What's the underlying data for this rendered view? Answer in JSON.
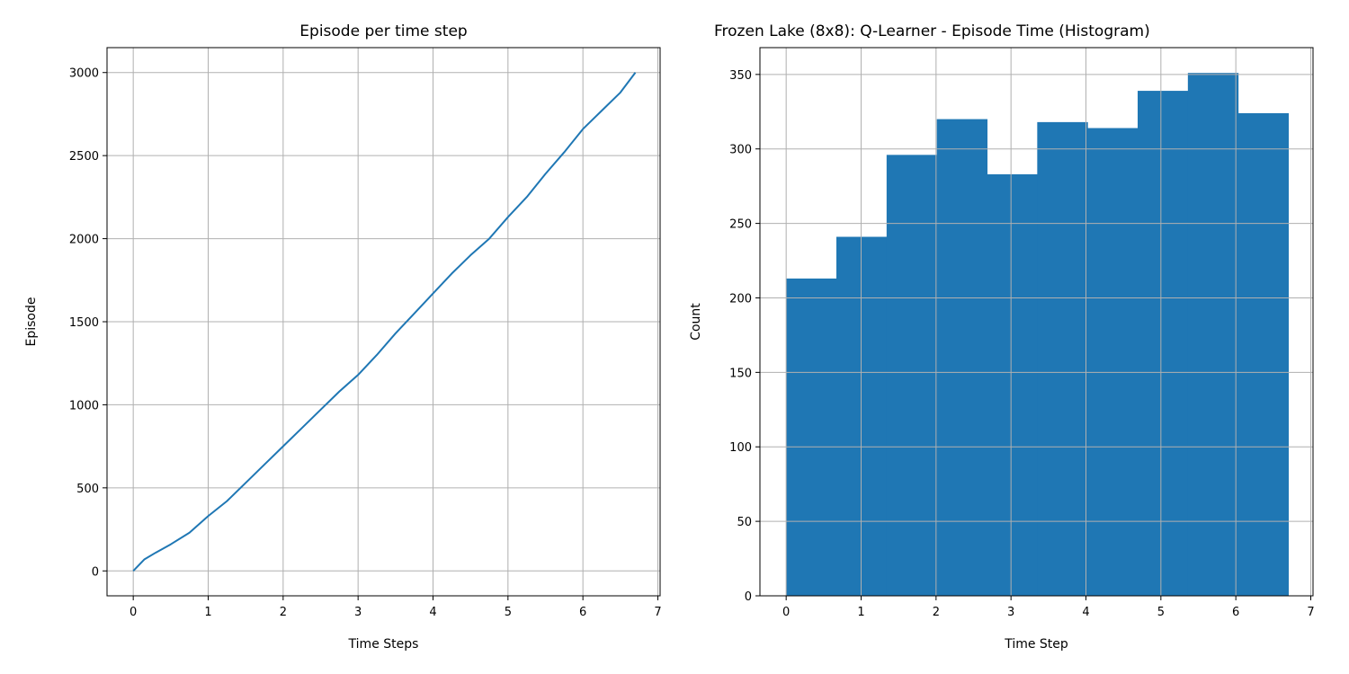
{
  "chart_data": [
    {
      "type": "line",
      "title": "Episode per time step",
      "xlabel": "Time Steps",
      "ylabel": "Episode",
      "xlim": [
        -0.35,
        7.03
      ],
      "ylim": [
        -150,
        3150
      ],
      "xticks": [
        0,
        1,
        2,
        3,
        4,
        5,
        6,
        7
      ],
      "yticks": [
        0,
        500,
        1000,
        1500,
        2000,
        2500,
        3000
      ],
      "grid": true,
      "line_color": "#1f77b4",
      "series": [
        {
          "x": [
            0,
            0.15,
            0.3,
            0.5,
            0.75,
            1.0,
            1.25,
            1.5,
            1.75,
            2.0,
            2.25,
            2.5,
            2.75,
            3.0,
            3.25,
            3.5,
            3.75,
            4.0,
            4.25,
            4.5,
            4.75,
            5.0,
            5.25,
            5.5,
            5.75,
            6.0,
            6.25,
            6.5,
            6.7
          ],
          "y": [
            0,
            70,
            110,
            160,
            230,
            330,
            420,
            530,
            640,
            750,
            860,
            970,
            1080,
            1180,
            1300,
            1430,
            1550,
            1670,
            1790,
            1900,
            2000,
            2130,
            2250,
            2390,
            2520,
            2660,
            2770,
            2880,
            3000
          ]
        }
      ]
    },
    {
      "type": "bar",
      "title": "Frozen Lake (8x8): Q-Learner - Episode Time (Histogram)",
      "xlabel": "Time Step",
      "ylabel": "Count",
      "xlim": [
        -0.35,
        7.03
      ],
      "ylim": [
        0,
        368
      ],
      "xticks": [
        0,
        1,
        2,
        3,
        4,
        5,
        6,
        7
      ],
      "yticks": [
        0,
        50,
        100,
        150,
        200,
        250,
        300,
        350
      ],
      "grid": true,
      "bar_color": "#1f77b4",
      "bin_edges": [
        0,
        0.67,
        1.34,
        2.01,
        2.68,
        3.35,
        4.02,
        4.69,
        5.36,
        6.03,
        6.7
      ],
      "values": [
        213,
        241,
        296,
        320,
        283,
        318,
        314,
        339,
        351,
        324
      ]
    }
  ]
}
